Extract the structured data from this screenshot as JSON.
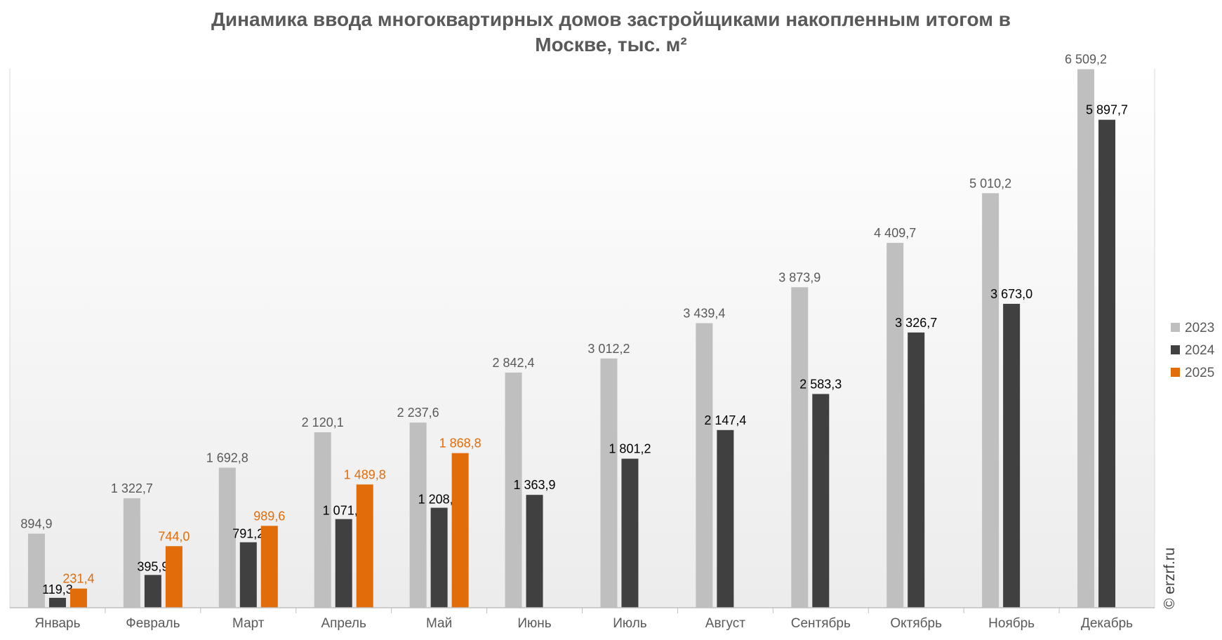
{
  "title_line1": "Динамика ввода многоквартирных домов застройщиками накопленным итогом в",
  "title_line2": "Москве, тыс. м²",
  "watermark": "© erzrf.ru",
  "chart_data": {
    "type": "bar",
    "title": "Динамика ввода многоквартирных домов застройщиками накопленным итогом в Москве, тыс. м²",
    "categories": [
      "Январь",
      "Февраль",
      "Март",
      "Апрель",
      "Май",
      "Июнь",
      "Июль",
      "Август",
      "Сентябрь",
      "Октябрь",
      "Ноябрь",
      "Декабрь"
    ],
    "series": [
      {
        "name": "2023",
        "color": "#bfbfbf",
        "values": [
          894.9,
          1322.7,
          1692.8,
          2120.1,
          2237.6,
          2842.4,
          3012.2,
          3439.4,
          3873.9,
          4409.7,
          5010.2,
          6509.2
        ],
        "labels": [
          "894,9",
          "1 322,7",
          "1 692,8",
          "2 120,1",
          "2 237,6",
          "2 842,4",
          "3 012,2",
          "3 439,4",
          "3 873,9",
          "4 409,7",
          "5 010,2",
          "6 509,2"
        ],
        "label_color": "#595959"
      },
      {
        "name": "2024",
        "color": "#404040",
        "values": [
          119.3,
          395.9,
          791.2,
          1071.2,
          1208.1,
          1363.9,
          1801.2,
          2147.4,
          2583.3,
          3326.7,
          3673.0,
          5897.7
        ],
        "labels": [
          "119,3",
          "395,9",
          "791,2",
          "1 071,2",
          "1 208,1",
          "1 363,9",
          "1 801,2",
          "2 147,4",
          "2 583,3",
          "3 326,7",
          "3 673,0",
          "5 897,7"
        ],
        "label_color": "#000000"
      },
      {
        "name": "2025",
        "color": "#e36c0a",
        "values": [
          231.4,
          744.0,
          989.6,
          1489.8,
          1868.8,
          null,
          null,
          null,
          null,
          null,
          null,
          null
        ],
        "labels": [
          "231,4",
          "744,0",
          "989,6",
          "1 489,8",
          "1 868,8",
          "",
          "",
          "",
          "",
          "",
          "",
          ""
        ],
        "label_color": "#e36c0a"
      }
    ],
    "ylim": [
      0,
      7000
    ],
    "grid": false,
    "legend": "right"
  }
}
